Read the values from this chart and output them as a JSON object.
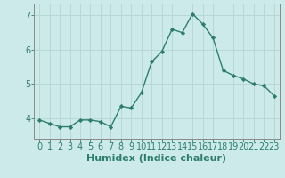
{
  "x": [
    0,
    1,
    2,
    3,
    4,
    5,
    6,
    7,
    8,
    9,
    10,
    11,
    12,
    13,
    14,
    15,
    16,
    17,
    18,
    19,
    20,
    21,
    22,
    23
  ],
  "y": [
    3.95,
    3.85,
    3.75,
    3.75,
    3.95,
    3.95,
    3.9,
    3.75,
    4.35,
    4.3,
    4.75,
    5.65,
    5.95,
    6.6,
    6.5,
    7.05,
    6.75,
    6.35,
    5.4,
    5.25,
    5.15,
    5.0,
    4.95,
    4.65
  ],
  "line_color": "#2d7d6d",
  "marker": "D",
  "marker_size": 2.2,
  "bg_color": "#cceaea",
  "grid_color": "#b8d8d8",
  "xlabel": "Humidex (Indice chaleur)",
  "xlim": [
    -0.5,
    23.5
  ],
  "ylim": [
    3.4,
    7.35
  ],
  "yticks": [
    4,
    5,
    6,
    7
  ],
  "xticks": [
    0,
    1,
    2,
    3,
    4,
    5,
    6,
    7,
    8,
    9,
    10,
    11,
    12,
    13,
    14,
    15,
    16,
    17,
    18,
    19,
    20,
    21,
    22,
    23
  ],
  "xlabel_fontsize": 8,
  "tick_fontsize": 7,
  "spine_color": "#888888"
}
